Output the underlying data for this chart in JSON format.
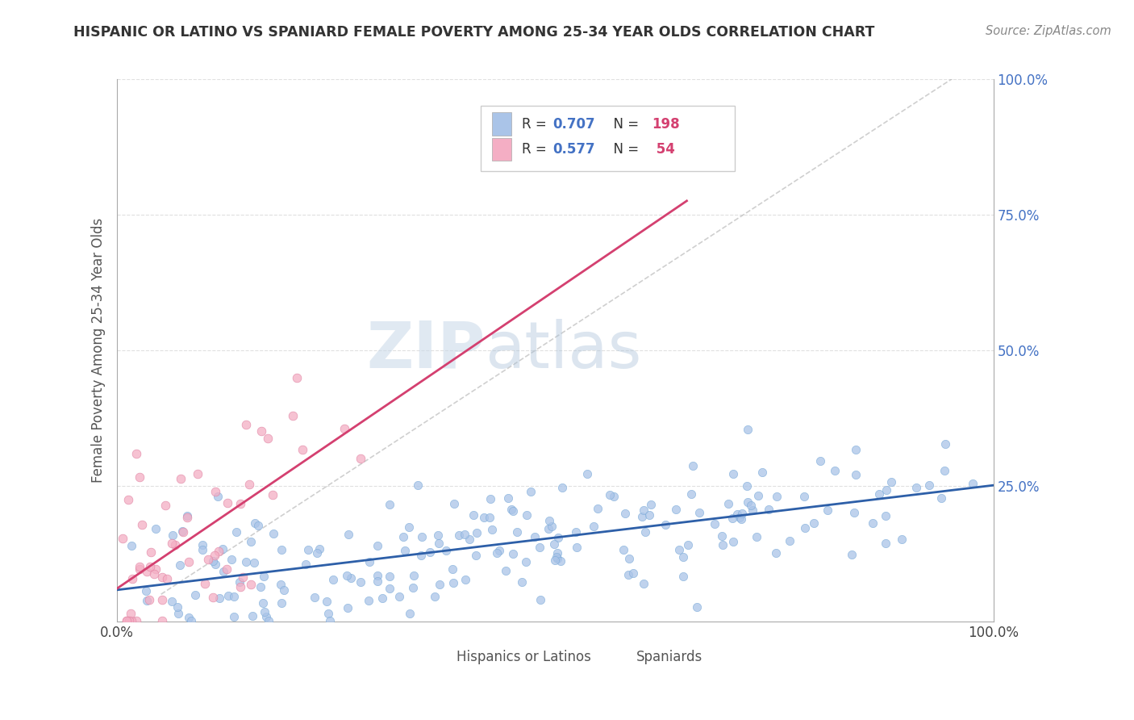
{
  "title": "HISPANIC OR LATINO VS SPANIARD FEMALE POVERTY AMONG 25-34 YEAR OLDS CORRELATION CHART",
  "source": "Source: ZipAtlas.com",
  "ylabel": "Female Poverty Among 25-34 Year Olds",
  "xlim": [
    0,
    1.0
  ],
  "ylim": [
    0,
    1.0
  ],
  "ytick_positions": [
    0.25,
    0.5,
    0.75,
    1.0
  ],
  "ytick_labels": [
    "25.0%",
    "50.0%",
    "75.0%",
    "100.0%"
  ],
  "xtick_positions": [
    0.0,
    1.0
  ],
  "xtick_labels": [
    "0.0%",
    "100.0%"
  ],
  "group1_color": "#aac4e8",
  "group2_color": "#f4aec4",
  "group1_line_color": "#2d5fa8",
  "group2_line_color": "#d44070",
  "group1_edge_color": "#7aaad8",
  "group2_edge_color": "#e080a0",
  "group1_label": "Hispanics or Latinos",
  "group2_label": "Spaniards",
  "background_color": "#ffffff",
  "watermark_zip": "ZIP",
  "watermark_atlas": "atlas",
  "watermark_zip_color": "#c8d8e8",
  "watermark_atlas_color": "#a8c0d8",
  "grid_color": "#dddddd",
  "axis_color": "#aaaaaa",
  "tick_color": "#4472c4",
  "title_color": "#333333",
  "source_color": "#888888",
  "legend_R_color": "#4472c4",
  "legend_N_color": "#d44070",
  "R1": 0.707,
  "N1": 198,
  "R2": 0.577,
  "N2": 54,
  "seed": 12345
}
